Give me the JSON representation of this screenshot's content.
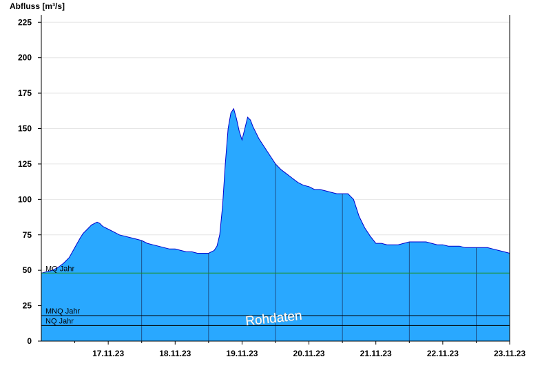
{
  "chart_data": {
    "type": "area",
    "ylabel": "Abfluss [m³/s]",
    "ylim": [
      0,
      230
    ],
    "yticks": [
      0,
      25,
      50,
      75,
      100,
      125,
      150,
      175,
      200,
      225
    ],
    "xlim": [
      "2023-11-16T12:00",
      "2023-11-23T12:00"
    ],
    "x_tick_labels": [
      "17.11.23",
      "18.11.23",
      "19.11.23",
      "20.11.23",
      "21.11.23",
      "22.11.23",
      "23.11.23"
    ],
    "grid": true,
    "reference_lines": [
      {
        "name": "MQ Jahr",
        "value": 48,
        "color": "#1a8f1a"
      },
      {
        "name": "MNQ Jahr",
        "value": 18,
        "color": "#000000"
      },
      {
        "name": "NQ Jahr",
        "value": 11,
        "color": "#000000"
      }
    ],
    "watermark": "Rohdaten",
    "fill_color": "#29a8ff",
    "line_color": "#0000cc",
    "series": [
      {
        "x": [
          "2023-11-16T12:00",
          "2023-11-16T14:00",
          "2023-11-16T16:00",
          "2023-11-16T18:00",
          "2023-11-16T20:00",
          "2023-11-16T22:00",
          "2023-11-17T00:00",
          "2023-11-17T02:00",
          "2023-11-17T03:00",
          "2023-11-17T04:00",
          "2023-11-17T06:00",
          "2023-11-17T08:00",
          "2023-11-17T09:00",
          "2023-11-17T10:00",
          "2023-11-17T12:00",
          "2023-11-17T14:00",
          "2023-11-17T16:00",
          "2023-11-17T18:00",
          "2023-11-17T20:00",
          "2023-11-17T22:00",
          "2023-11-18T00:00",
          "2023-11-18T02:00",
          "2023-11-18T04:00",
          "2023-11-18T06:00",
          "2023-11-18T08:00",
          "2023-11-18T10:00",
          "2023-11-18T12:00",
          "2023-11-18T14:00",
          "2023-11-18T16:00",
          "2023-11-18T18:00",
          "2023-11-18T20:00",
          "2023-11-18T22:00",
          "2023-11-19T00:00",
          "2023-11-19T01:00",
          "2023-11-19T02:00",
          "2023-11-19T03:00",
          "2023-11-19T04:00",
          "2023-11-19T05:00",
          "2023-11-19T06:00",
          "2023-11-19T07:00",
          "2023-11-19T08:00",
          "2023-11-19T09:00",
          "2023-11-19T10:00",
          "2023-11-19T11:00",
          "2023-11-19T12:00",
          "2023-11-19T13:00",
          "2023-11-19T14:00",
          "2023-11-19T15:00",
          "2023-11-19T16:00",
          "2023-11-19T17:00",
          "2023-11-19T18:00",
          "2023-11-19T20:00",
          "2023-11-19T22:00",
          "2023-11-20T00:00",
          "2023-11-20T02:00",
          "2023-11-20T04:00",
          "2023-11-20T06:00",
          "2023-11-20T08:00",
          "2023-11-20T10:00",
          "2023-11-20T12:00",
          "2023-11-20T14:00",
          "2023-11-20T16:00",
          "2023-11-20T18:00",
          "2023-11-20T20:00",
          "2023-11-20T22:00",
          "2023-11-21T00:00",
          "2023-11-21T02:00",
          "2023-11-21T04:00",
          "2023-11-21T06:00",
          "2023-11-21T08:00",
          "2023-11-21T10:00",
          "2023-11-21T12:00",
          "2023-11-21T14:00",
          "2023-11-21T16:00",
          "2023-11-21T18:00",
          "2023-11-21T20:00",
          "2023-11-21T22:00",
          "2023-11-22T00:00",
          "2023-11-22T02:00",
          "2023-11-22T04:00",
          "2023-11-22T06:00",
          "2023-11-22T08:00",
          "2023-11-22T10:00",
          "2023-11-22T12:00",
          "2023-11-22T14:00",
          "2023-11-22T16:00",
          "2023-11-22T18:00",
          "2023-11-22T20:00",
          "2023-11-22T22:00",
          "2023-11-23T00:00",
          "2023-11-23T02:00",
          "2023-11-23T04:00",
          "2023-11-23T06:00",
          "2023-11-23T08:00",
          "2023-11-23T10:00",
          "2023-11-23T12:00"
        ],
        "y": [
          48,
          49,
          50,
          52,
          55,
          59,
          66,
          73,
          76,
          78,
          82,
          84,
          83,
          81,
          79,
          77,
          75,
          74,
          73,
          72,
          71,
          69,
          68,
          67,
          66,
          65,
          65,
          64,
          63,
          63,
          62,
          62,
          62,
          63,
          64,
          67,
          75,
          95,
          125,
          150,
          161,
          164,
          157,
          148,
          142,
          150,
          158,
          156,
          151,
          147,
          143,
          137,
          131,
          125,
          121,
          118,
          115,
          112,
          110,
          109,
          107,
          107,
          106,
          105,
          104,
          104,
          104,
          100,
          88,
          80,
          74,
          69,
          69,
          68,
          68,
          68,
          69,
          70,
          70,
          70,
          70,
          69,
          68,
          68,
          67,
          67,
          67,
          66,
          66,
          66,
          66,
          66,
          65,
          64,
          63,
          62
        ]
      }
    ]
  }
}
